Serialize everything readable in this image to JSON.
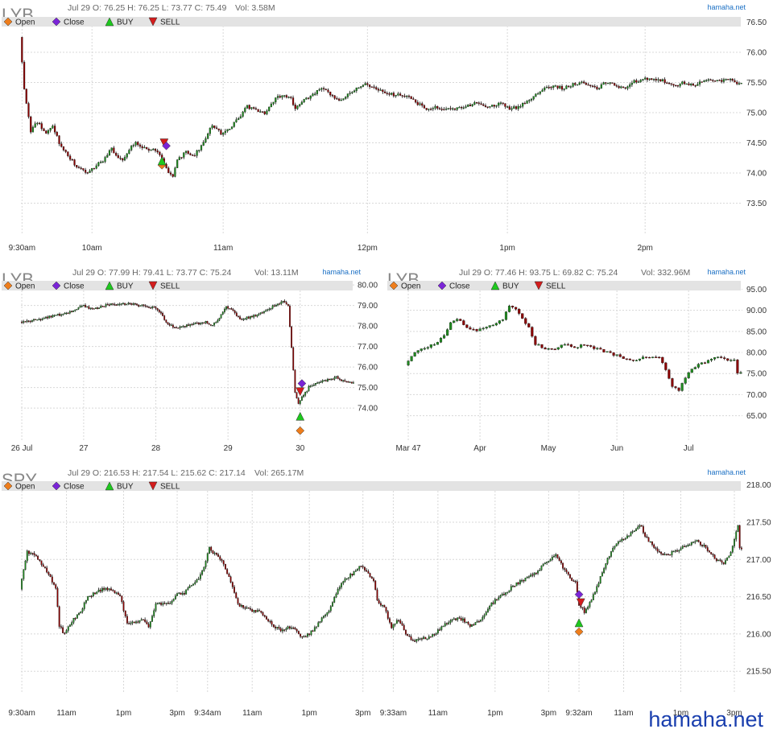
{
  "watermark": "hamaha.net",
  "colors": {
    "up": "#1f8a1f",
    "down": "#8b0000",
    "wick": "#111111",
    "legend_bg": "#e3e3e3",
    "open": "#ee7d1b",
    "close": "#7a24d6",
    "buy": "#1ec81e",
    "sell": "#d31c1c"
  },
  "legend": [
    "Open",
    "Close",
    "BUY",
    "SELL"
  ],
  "chart_data": [
    {
      "id": "intraday",
      "type": "candlestick",
      "symbol": "LYB",
      "info": {
        "date": "Jul 29",
        "o": "O: 76.25",
        "h": "H: 76.25",
        "l": "L: 73.77",
        "c": "C: 75.49",
        "vol": "Vol: 3.58M"
      },
      "brand": "hamaha.net",
      "ylim": [
        73.0,
        76.6
      ],
      "yticks": [
        "73.50",
        "74.00",
        "74.50",
        "75.00",
        "75.50",
        "76.00",
        "76.50"
      ],
      "xticks": [
        "9:30am",
        "10am",
        "11am",
        "12pm",
        "1pm",
        "2pm"
      ],
      "x_tick_index": [
        0,
        32,
        92,
        158,
        222,
        285
      ],
      "n_bars": 330,
      "anchors": [
        [
          0,
          76.25
        ],
        [
          2,
          75.4
        ],
        [
          5,
          74.7
        ],
        [
          8,
          74.85
        ],
        [
          12,
          74.65
        ],
        [
          15,
          74.8
        ],
        [
          18,
          74.5
        ],
        [
          22,
          74.3
        ],
        [
          26,
          74.1
        ],
        [
          30,
          74.0
        ],
        [
          34,
          74.1
        ],
        [
          38,
          74.2
        ],
        [
          42,
          74.4
        ],
        [
          44,
          74.3
        ],
        [
          47,
          74.2
        ],
        [
          50,
          74.4
        ],
        [
          53,
          74.5
        ],
        [
          56,
          74.4
        ],
        [
          60,
          74.4
        ],
        [
          64,
          74.3
        ],
        [
          68,
          74.0
        ],
        [
          70,
          73.95
        ],
        [
          72,
          74.2
        ],
        [
          76,
          74.35
        ],
        [
          80,
          74.3
        ],
        [
          84,
          74.5
        ],
        [
          88,
          74.8
        ],
        [
          92,
          74.65
        ],
        [
          96,
          74.75
        ],
        [
          100,
          74.9
        ],
        [
          104,
          75.1
        ],
        [
          108,
          75.05
        ],
        [
          112,
          75.0
        ],
        [
          116,
          75.2
        ],
        [
          120,
          75.3
        ],
        [
          124,
          75.25
        ],
        [
          126,
          75.05
        ],
        [
          130,
          75.2
        ],
        [
          134,
          75.3
        ],
        [
          138,
          75.4
        ],
        [
          142,
          75.3
        ],
        [
          146,
          75.2
        ],
        [
          150,
          75.3
        ],
        [
          154,
          75.4
        ],
        [
          158,
          75.5
        ],
        [
          162,
          75.4
        ],
        [
          166,
          75.35
        ],
        [
          170,
          75.3
        ],
        [
          174,
          75.3
        ],
        [
          178,
          75.25
        ],
        [
          182,
          75.15
        ],
        [
          186,
          75.05
        ],
        [
          190,
          75.1
        ],
        [
          196,
          75.05
        ],
        [
          202,
          75.1
        ],
        [
          208,
          75.15
        ],
        [
          214,
          75.1
        ],
        [
          220,
          75.15
        ],
        [
          224,
          75.05
        ],
        [
          228,
          75.1
        ],
        [
          232,
          75.2
        ],
        [
          236,
          75.3
        ],
        [
          240,
          75.4
        ],
        [
          244,
          75.45
        ],
        [
          248,
          75.4
        ],
        [
          252,
          75.45
        ],
        [
          256,
          75.5
        ],
        [
          260,
          75.45
        ],
        [
          264,
          75.4
        ],
        [
          268,
          75.5
        ],
        [
          272,
          75.45
        ],
        [
          276,
          75.4
        ],
        [
          280,
          75.5
        ],
        [
          284,
          75.55
        ],
        [
          288,
          75.55
        ],
        [
          292,
          75.55
        ],
        [
          296,
          75.5
        ],
        [
          300,
          75.45
        ],
        [
          304,
          75.5
        ],
        [
          308,
          75.45
        ],
        [
          312,
          75.5
        ],
        [
          316,
          75.55
        ],
        [
          320,
          75.52
        ],
        [
          324,
          75.55
        ],
        [
          329,
          75.49
        ]
      ],
      "markers": [
        {
          "type": "Open",
          "x": 64,
          "y": 74.13
        },
        {
          "type": "BUY",
          "x": 64,
          "y": 74.2
        },
        {
          "type": "SELL",
          "x": 65,
          "y": 74.5
        },
        {
          "type": "Close",
          "x": 66,
          "y": 74.45
        }
      ]
    },
    {
      "id": "five_day",
      "type": "candlestick",
      "symbol": "LYB",
      "info": {
        "date": "Jul 29",
        "o": "O: 77.99",
        "h": "H: 79.41",
        "l": "L: 73.77",
        "c": "C: 75.24",
        "vol": "Vol: 13.11M"
      },
      "brand": "hamaha.net",
      "ylim": [
        72.4,
        80.2
      ],
      "yticks": [
        "74.00",
        "75.00",
        "76.00",
        "77.00",
        "78.00",
        "79.00",
        "80.00"
      ],
      "xticks": [
        "26 Jul",
        "27",
        "28",
        "29",
        "30"
      ],
      "x_tick_index": [
        0,
        36,
        78,
        120,
        162
      ],
      "n_bars": 194,
      "anchors": [
        [
          0,
          78.2
        ],
        [
          10,
          78.3
        ],
        [
          20,
          78.5
        ],
        [
          30,
          78.7
        ],
        [
          36,
          79.0
        ],
        [
          42,
          78.8
        ],
        [
          50,
          79.0
        ],
        [
          60,
          79.1
        ],
        [
          70,
          79.0
        ],
        [
          78,
          78.9
        ],
        [
          82,
          78.6
        ],
        [
          86,
          78.1
        ],
        [
          90,
          77.9
        ],
        [
          96,
          78.0
        ],
        [
          102,
          78.1
        ],
        [
          108,
          78.2
        ],
        [
          112,
          78.0
        ],
        [
          116,
          78.4
        ],
        [
          120,
          78.9
        ],
        [
          124,
          78.7
        ],
        [
          128,
          78.3
        ],
        [
          132,
          78.4
        ],
        [
          136,
          78.5
        ],
        [
          140,
          78.6
        ],
        [
          146,
          78.9
        ],
        [
          150,
          79.1
        ],
        [
          154,
          79.2
        ],
        [
          156,
          79.0
        ],
        [
          158,
          77.0
        ],
        [
          160,
          74.8
        ],
        [
          162,
          74.2
        ],
        [
          164,
          74.5
        ],
        [
          168,
          75.0
        ],
        [
          172,
          75.2
        ],
        [
          176,
          75.3
        ],
        [
          180,
          75.4
        ],
        [
          184,
          75.5
        ],
        [
          188,
          75.3
        ],
        [
          193,
          75.24
        ]
      ],
      "markers": [
        {
          "type": "Open",
          "x": 162,
          "y": 72.9
        },
        {
          "type": "BUY",
          "x": 162,
          "y": 73.6
        },
        {
          "type": "SELL",
          "x": 162,
          "y": 74.8
        },
        {
          "type": "Close",
          "x": 163,
          "y": 75.2
        }
      ]
    },
    {
      "id": "daily",
      "type": "candlestick",
      "symbol": "LYB",
      "info": {
        "date": "Jul 29",
        "o": "O: 77.46",
        "h": "H: 93.75",
        "l": "L: 69.82",
        "c": "C: 75.24",
        "vol": "Vol: 332.96M"
      },
      "brand": "hamaha.net",
      "ylim": [
        59,
        97
      ],
      "yticks": [
        "65.00",
        "70.00",
        "75.00",
        "80.00",
        "85.00",
        "90.00",
        "95.00"
      ],
      "xticks": [
        "Mar 47",
        "Apr",
        "May",
        "Jun",
        "Jul"
      ],
      "x_tick_index": [
        0,
        22,
        43,
        64,
        86
      ],
      "n_bars": 103,
      "anchors": [
        [
          0,
          77
        ],
        [
          3,
          80
        ],
        [
          6,
          81
        ],
        [
          9,
          82
        ],
        [
          12,
          84
        ],
        [
          14,
          87
        ],
        [
          16,
          88
        ],
        [
          19,
          86
        ],
        [
          22,
          85
        ],
        [
          25,
          86
        ],
        [
          28,
          87
        ],
        [
          30,
          88
        ],
        [
          32,
          91
        ],
        [
          34,
          90
        ],
        [
          36,
          88
        ],
        [
          38,
          86
        ],
        [
          40,
          82
        ],
        [
          43,
          81
        ],
        [
          46,
          81
        ],
        [
          49,
          82
        ],
        [
          52,
          81
        ],
        [
          55,
          82
        ],
        [
          58,
          81
        ],
        [
          62,
          80
        ],
        [
          66,
          79
        ],
        [
          70,
          78
        ],
        [
          74,
          79
        ],
        [
          78,
          79
        ],
        [
          80,
          76
        ],
        [
          82,
          72
        ],
        [
          84,
          71
        ],
        [
          86,
          74
        ],
        [
          88,
          76
        ],
        [
          90,
          77
        ],
        [
          93,
          78
        ],
        [
          96,
          79
        ],
        [
          99,
          78
        ],
        [
          101,
          78.5
        ],
        [
          102,
          75.24
        ]
      ],
      "markers": []
    },
    {
      "id": "spy",
      "type": "candlestick",
      "symbol": "SPY",
      "info": {
        "date": "Jul 29",
        "o": "O: 216.53",
        "h": "H: 217.54",
        "l": "L: 215.62",
        "c": "C: 217.14",
        "vol": "Vol: 265.17M"
      },
      "brand": "hamaha.net",
      "ylim": [
        215.2,
        218.05
      ],
      "yticks": [
        "215.50",
        "216.00",
        "216.50",
        "217.00",
        "217.50",
        "218.00"
      ],
      "xticks": [
        "9:30am",
        "11am",
        "1pm",
        "3pm",
        "9:34am",
        "11am",
        "1pm",
        "3pm",
        "9:33am",
        "11am",
        "1pm",
        "3pm",
        "9:32am",
        "11am",
        "1pm",
        "3pm"
      ],
      "x_tick_index": [
        0,
        25,
        57,
        87,
        104,
        129,
        161,
        191,
        208,
        233,
        265,
        295,
        312,
        337,
        369,
        399
      ],
      "n_bars": 404,
      "anchors": [
        [
          0,
          216.6
        ],
        [
          4,
          217.1
        ],
        [
          8,
          217.05
        ],
        [
          12,
          216.95
        ],
        [
          16,
          216.8
        ],
        [
          20,
          216.6
        ],
        [
          22,
          216.1
        ],
        [
          25,
          216.0
        ],
        [
          30,
          216.2
        ],
        [
          34,
          216.3
        ],
        [
          38,
          216.5
        ],
        [
          42,
          216.55
        ],
        [
          46,
          216.6
        ],
        [
          50,
          216.6
        ],
        [
          56,
          216.5
        ],
        [
          60,
          216.15
        ],
        [
          64,
          216.15
        ],
        [
          68,
          216.2
        ],
        [
          72,
          216.1
        ],
        [
          76,
          216.4
        ],
        [
          80,
          216.4
        ],
        [
          84,
          216.4
        ],
        [
          88,
          216.55
        ],
        [
          92,
          216.55
        ],
        [
          96,
          216.65
        ],
        [
          100,
          216.75
        ],
        [
          103,
          216.9
        ],
        [
          106,
          217.15
        ],
        [
          110,
          217.05
        ],
        [
          114,
          216.95
        ],
        [
          118,
          216.7
        ],
        [
          122,
          216.4
        ],
        [
          126,
          216.35
        ],
        [
          130,
          216.3
        ],
        [
          134,
          216.3
        ],
        [
          138,
          216.2
        ],
        [
          142,
          216.1
        ],
        [
          146,
          216.05
        ],
        [
          150,
          216.1
        ],
        [
          154,
          216.05
        ],
        [
          158,
          215.95
        ],
        [
          162,
          216.0
        ],
        [
          166,
          216.1
        ],
        [
          170,
          216.25
        ],
        [
          174,
          216.35
        ],
        [
          178,
          216.6
        ],
        [
          182,
          216.75
        ],
        [
          186,
          216.8
        ],
        [
          190,
          216.9
        ],
        [
          194,
          216.85
        ],
        [
          198,
          216.7
        ],
        [
          200,
          216.45
        ],
        [
          204,
          216.35
        ],
        [
          208,
          216.1
        ],
        [
          212,
          216.2
        ],
        [
          216,
          216.0
        ],
        [
          220,
          215.9
        ],
        [
          224,
          215.95
        ],
        [
          228,
          215.95
        ],
        [
          232,
          216.0
        ],
        [
          236,
          216.1
        ],
        [
          240,
          216.15
        ],
        [
          244,
          216.2
        ],
        [
          248,
          216.2
        ],
        [
          252,
          216.1
        ],
        [
          256,
          216.15
        ],
        [
          260,
          216.25
        ],
        [
          264,
          216.4
        ],
        [
          268,
          216.5
        ],
        [
          272,
          216.55
        ],
        [
          276,
          216.65
        ],
        [
          280,
          216.7
        ],
        [
          284,
          216.75
        ],
        [
          288,
          216.8
        ],
        [
          292,
          216.9
        ],
        [
          296,
          217.0
        ],
        [
          300,
          217.05
        ],
        [
          304,
          216.9
        ],
        [
          308,
          216.75
        ],
        [
          311,
          216.7
        ],
        [
          313,
          216.4
        ],
        [
          316,
          216.3
        ],
        [
          320,
          216.45
        ],
        [
          324,
          216.7
        ],
        [
          328,
          216.95
        ],
        [
          332,
          217.15
        ],
        [
          336,
          217.25
        ],
        [
          340,
          217.3
        ],
        [
          344,
          217.4
        ],
        [
          348,
          217.45
        ],
        [
          350,
          217.3
        ],
        [
          354,
          217.2
        ],
        [
          358,
          217.1
        ],
        [
          362,
          217.05
        ],
        [
          366,
          217.1
        ],
        [
          370,
          217.15
        ],
        [
          374,
          217.2
        ],
        [
          378,
          217.25
        ],
        [
          382,
          217.2
        ],
        [
          386,
          217.1
        ],
        [
          390,
          217.0
        ],
        [
          394,
          216.95
        ],
        [
          398,
          217.1
        ],
        [
          402,
          217.45
        ],
        [
          403,
          217.14
        ]
      ],
      "markers": [
        {
          "type": "Open",
          "x": 312,
          "y": 216.03
        },
        {
          "type": "BUY",
          "x": 312,
          "y": 216.15
        },
        {
          "type": "SELL",
          "x": 313,
          "y": 216.42
        },
        {
          "type": "Close",
          "x": 312,
          "y": 216.53
        }
      ]
    }
  ]
}
